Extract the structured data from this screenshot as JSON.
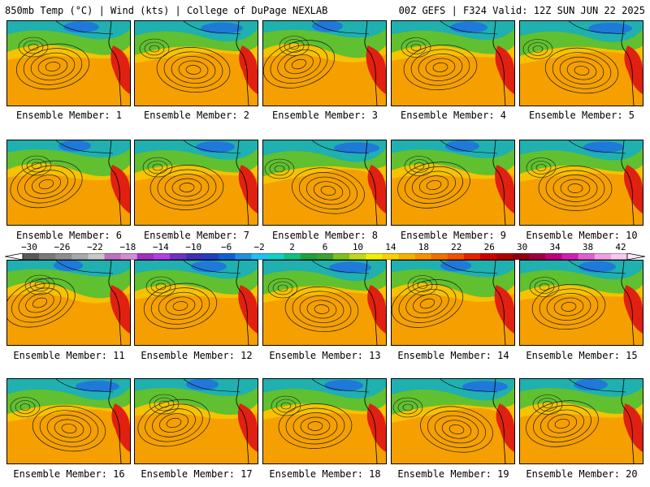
{
  "header": {
    "left": "850mb Temp (°C) | Wind (kts) | College of DuPage NEXLAB",
    "right": "00Z GEFS | F324 Valid: 12Z SUN JUN 22 2025"
  },
  "member_label_prefix": "Ensemble Member: ",
  "members": [
    1,
    2,
    3,
    4,
    5,
    6,
    7,
    8,
    9,
    10,
    11,
    12,
    13,
    14,
    15,
    16,
    17,
    18,
    19,
    20
  ],
  "colorbar": {
    "tick_labels": [
      "−30",
      "−26",
      "−22",
      "−18",
      "−14",
      "−10",
      "−6",
      "−2",
      "2",
      "6",
      "10",
      "14",
      "18",
      "22",
      "26",
      "30",
      "34",
      "38",
      "42"
    ],
    "bins": [
      "#5a5a5a",
      "#7a7a7a",
      "#8e8e8e",
      "#a8a8a8",
      "#c8c8c8",
      "#c070c0",
      "#d090d0",
      "#a030c0",
      "#b040e0",
      "#7030c0",
      "#4030b0",
      "#2040c0",
      "#1060d0",
      "#2090e0",
      "#20c0f0",
      "#10d0c8",
      "#10c080",
      "#20a040",
      "#40a030",
      "#80c020",
      "#c0d820",
      "#f0f000",
      "#f8d000",
      "#f8b000",
      "#f89000",
      "#f07000",
      "#f05000",
      "#e82000",
      "#d00000",
      "#b00000",
      "#900010",
      "#a00040",
      "#c00080",
      "#d020b0",
      "#e060d0",
      "#f0a0e0",
      "#f8c8f0"
    ]
  },
  "colors": {
    "hot": "#e02010",
    "warm": "#f5a000",
    "mild": "#f8d000",
    "cool": "#60c030",
    "cold": "#20b0b0",
    "coldest": "#2070e0"
  }
}
